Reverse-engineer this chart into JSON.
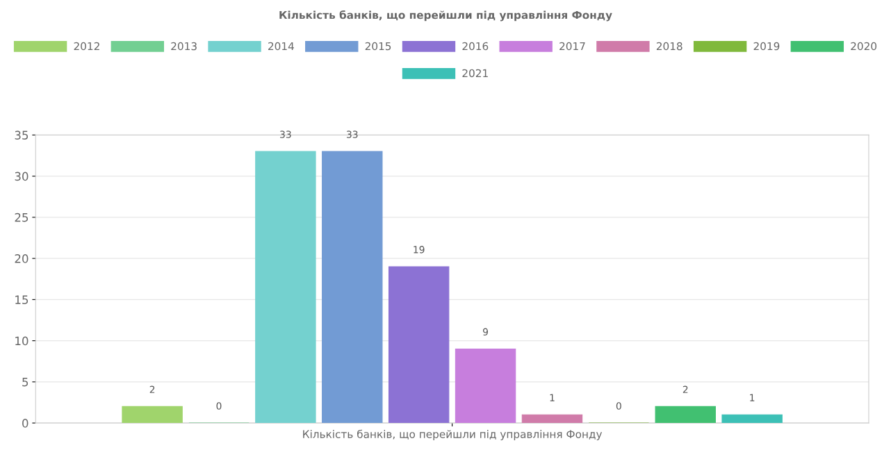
{
  "chart_data": {
    "type": "bar",
    "title": "Кількість банків, що перейшли під управління Фонду",
    "categories": [
      "Кількість банків, що перейшли під управління Фонду"
    ],
    "series": [
      {
        "name": "2012",
        "color": "#a0d46c",
        "values": [
          2
        ]
      },
      {
        "name": "2013",
        "color": "#72cf92",
        "values": [
          0
        ]
      },
      {
        "name": "2014",
        "color": "#74d1cf",
        "values": [
          33
        ]
      },
      {
        "name": "2015",
        "color": "#729bd4",
        "values": [
          33
        ]
      },
      {
        "name": "2016",
        "color": "#8c72d4",
        "values": [
          19
        ]
      },
      {
        "name": "2017",
        "color": "#c77edd",
        "values": [
          9
        ]
      },
      {
        "name": "2018",
        "color": "#d07ba9",
        "values": [
          1
        ]
      },
      {
        "name": "2019",
        "color": "#80b93c",
        "values": [
          0
        ]
      },
      {
        "name": "2020",
        "color": "#41c071",
        "values": [
          2
        ]
      },
      {
        "name": "2021",
        "color": "#3cc0b6",
        "values": [
          1
        ]
      }
    ],
    "ylim": [
      0,
      35
    ],
    "yticks": [
      0,
      5,
      10,
      15,
      20,
      25,
      30,
      35
    ],
    "grid": "y",
    "legend": "top",
    "data_labels": true
  }
}
